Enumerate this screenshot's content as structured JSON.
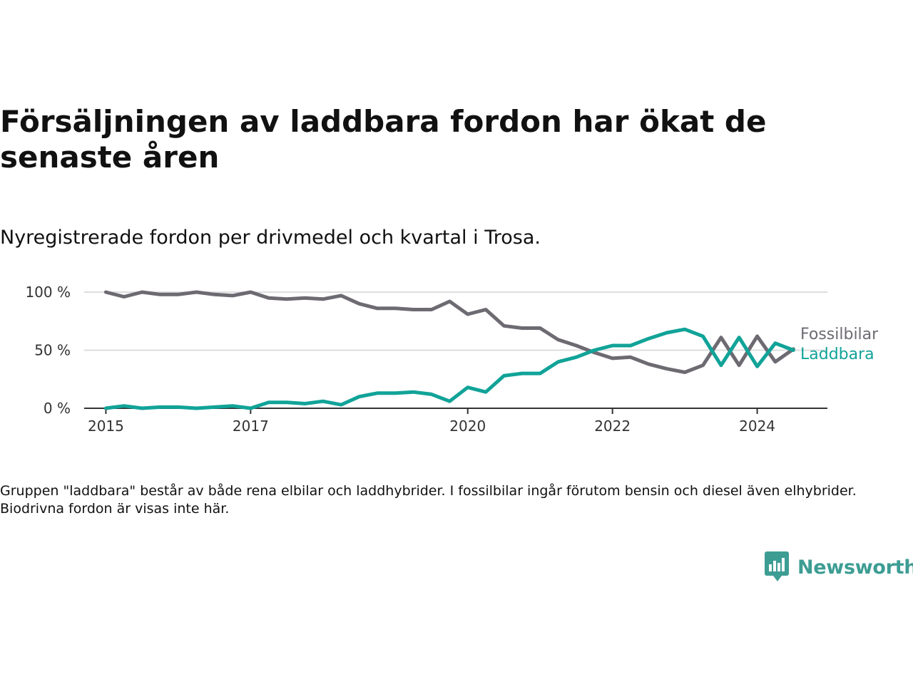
{
  "header": {
    "title": "Försäljningen av laddbara fordon har ökat de senaste åren",
    "subtitle": "Nyregistrerade fordon per drivmedel och kvartal i Trosa."
  },
  "footnote": "Gruppen \"laddbara\" består av både rena elbilar och laddhybrider. I fossilbilar ingår förutom bensin och diesel även elhybrider. Biodrivna fordon är visas inte här.",
  "brand": {
    "name": "Newsworthy",
    "icon": "newsworthy-logo-icon",
    "color": "#3d9d93"
  },
  "chart_data": {
    "type": "line",
    "title": "Försäljningen av laddbara fordon har ökat de senaste åren",
    "subtitle": "Nyregistrerade fordon per drivmedel och kvartal i Trosa.",
    "xlabel": "",
    "ylabel": "",
    "x_ticks": [
      "2015",
      "2017",
      "2020",
      "2022",
      "2024"
    ],
    "x_tick_values": [
      2015.0,
      2017.0,
      2020.0,
      2022.0,
      2024.0
    ],
    "y_ticks": [
      "0 %",
      "50 %",
      "100 %"
    ],
    "y_tick_values": [
      0,
      50,
      100
    ],
    "xlim": [
      2014.7,
      2024.97
    ],
    "ylim": [
      0,
      100
    ],
    "grid": true,
    "legend": "inline-right",
    "x": [
      2015.0,
      2015.25,
      2015.5,
      2015.75,
      2016.0,
      2016.25,
      2016.5,
      2016.75,
      2017.0,
      2017.25,
      2017.5,
      2017.75,
      2018.0,
      2018.25,
      2018.5,
      2018.75,
      2019.0,
      2019.25,
      2019.5,
      2019.75,
      2020.0,
      2020.25,
      2020.5,
      2020.75,
      2021.0,
      2021.25,
      2021.5,
      2021.75,
      2022.0,
      2022.25,
      2022.5,
      2022.75,
      2023.0,
      2023.25,
      2023.5,
      2023.75,
      2024.0,
      2024.25,
      2024.5
    ],
    "series": [
      {
        "name": "Fossilbilar",
        "color": "#6d6a72",
        "values": [
          100,
          96,
          100,
          98,
          98,
          100,
          98,
          97,
          100,
          95,
          94,
          95,
          94,
          97,
          90,
          86,
          86,
          85,
          85,
          92,
          81,
          85,
          71,
          69,
          69,
          59,
          54,
          48,
          43,
          44,
          38,
          34,
          31,
          37,
          61,
          37,
          62,
          40,
          51
        ]
      },
      {
        "name": "Laddbara",
        "color": "#11a398",
        "values": [
          0,
          2,
          0,
          1,
          1,
          0,
          1,
          2,
          0,
          5,
          5,
          4,
          6,
          3,
          10,
          13,
          13,
          14,
          12,
          6,
          18,
          14,
          28,
          30,
          30,
          40,
          44,
          50,
          54,
          54,
          60,
          65,
          68,
          62,
          37,
          61,
          36,
          56,
          50
        ]
      }
    ]
  }
}
